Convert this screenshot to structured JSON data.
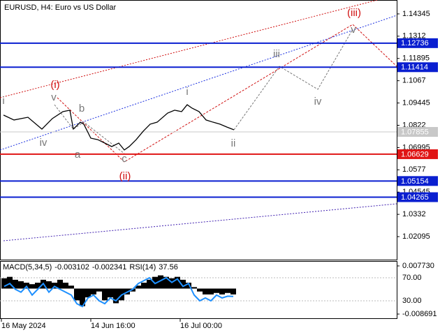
{
  "chart_data": {
    "type": "line",
    "title": "EURUSD, H4:  Euro vs US Dollar",
    "xlim": [
      0,
      568
    ],
    "xticks": [
      {
        "value": 2,
        "label": "16 May 2024"
      },
      {
        "value": 130,
        "label": "14 Jun 16:00"
      },
      {
        "value": 258,
        "label": "16 Jul 00:00"
      }
    ],
    "ylim": [
      1.0083,
      1.1511
    ],
    "yticks": [
      1.14345,
      1.1312,
      1.11895,
      1.1067,
      1.09445,
      1.0822,
      1.06995,
      1.0577,
      1.04545,
      1.0332,
      1.02095
    ],
    "series": [
      {
        "color": "#000000",
        "x": [
          5,
          20,
          40,
          60,
          75,
          90,
          100,
          105,
          115,
          120,
          130,
          140,
          150,
          160,
          170,
          178,
          185,
          195,
          205,
          215,
          225,
          240,
          250,
          260,
          268,
          275,
          285,
          295,
          305,
          315,
          325,
          335
        ],
        "values": [
          1.0878,
          1.0851,
          1.0866,
          1.0801,
          1.0859,
          1.0897,
          1.0905,
          1.0801,
          1.0839,
          1.0828,
          1.0751,
          1.0743,
          1.0724,
          1.0705,
          1.0724,
          1.0686,
          1.0705,
          1.0743,
          1.0789,
          1.0828,
          1.0839,
          1.0889,
          1.0905,
          1.0897,
          1.0935,
          1.0916,
          1.0897,
          1.0851,
          1.0839,
          1.0828,
          1.0812,
          1.0797
        ]
      }
    ],
    "levels": [
      {
        "value": 1.12736,
        "color": "#0a1fd0"
      },
      {
        "value": 1.11414,
        "color": "#0a1fd0"
      },
      {
        "value": 1.07855,
        "color": "#c8c8c8"
      },
      {
        "value": 1.06629,
        "color": "#e01515"
      },
      {
        "value": 1.05154,
        "color": "#0a1fd0"
      },
      {
        "value": 1.04265,
        "color": "#0a1fd0"
      }
    ],
    "annotations": [
      {
        "text": "i",
        "color": "#777777"
      },
      {
        "text": "iv",
        "color": "#777777"
      },
      {
        "text": "v",
        "color": "#777777"
      },
      {
        "text": "a",
        "color": "#777777"
      },
      {
        "text": "b",
        "color": "#777777"
      },
      {
        "text": "c",
        "color": "#777777"
      },
      {
        "text": "i",
        "color": "#777777"
      },
      {
        "text": "ii",
        "color": "#777777"
      },
      {
        "text": "iii",
        "color": "#777777"
      },
      {
        "text": "iv",
        "color": "#777777"
      },
      {
        "text": "v",
        "color": "#777777"
      },
      {
        "text": "(i)",
        "color": "#d01010"
      },
      {
        "text": "(ii)",
        "color": "#d01010"
      },
      {
        "text": "(iii)",
        "color": "#d01010"
      }
    ],
    "indicator": {
      "macd_label": "MACD(5,34,5)",
      "macd_main": -0.003102,
      "macd_signal": -0.002341,
      "rsi_label": "RSI(14)",
      "rsi_value": 37.56,
      "macd_ylim": [
        -0.008691,
        0.00773
      ],
      "macd_yticks": [
        {
          "value": 0.00773,
          "label": "0.007730"
        },
        -0.008691
      ],
      "rsi_ticks": [
        {
          "value": 70,
          "label": "70.00"
        },
        {
          "value": 30,
          "label": "30.00"
        }
      ],
      "rsi_color": "#1e90ff",
      "macd_values": [
        0.0035,
        0.004,
        0.003,
        0.0025,
        0.002,
        0.0015,
        0.002,
        0.003,
        0.0025,
        0.002,
        0.003,
        0.002,
        0.001,
        -0.004,
        -0.006,
        -0.003,
        -0.002,
        -0.001,
        -0.004,
        -0.003,
        -0.005,
        -0.004,
        -0.002,
        -0.001,
        0.001,
        0.002,
        0.003,
        0.004,
        0.0045,
        0.004,
        0.0035,
        0.004,
        0.003,
        0.002,
        0.0005,
        -0.001,
        -0.002,
        -0.002,
        -0.0015,
        -0.002,
        -0.0015,
        -0.002
      ],
      "rsi_values": [
        55,
        60,
        50,
        45,
        55,
        40,
        50,
        60,
        45,
        55,
        50,
        45,
        40,
        25,
        20,
        35,
        40,
        30,
        25,
        35,
        30,
        40,
        45,
        50,
        60,
        65,
        70,
        60,
        65,
        70,
        62,
        68,
        55,
        60,
        40,
        30,
        35,
        30,
        40,
        35,
        38,
        37.56
      ]
    }
  }
}
